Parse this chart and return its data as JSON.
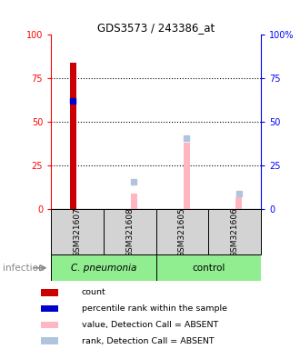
{
  "title": "GDS3573 / 243386_at",
  "samples": [
    "GSM321607",
    "GSM321608",
    "GSM321605",
    "GSM321606"
  ],
  "ylim": [
    0,
    100
  ],
  "left_yticks": [
    0,
    25,
    50,
    75,
    100
  ],
  "right_ytick_labels": [
    "0",
    "25",
    "50",
    "75",
    "100%"
  ],
  "count_values": [
    84,
    0,
    0,
    0
  ],
  "count_color": "#cc0000",
  "percentile_rank_values": [
    62,
    0,
    0,
    0
  ],
  "percentile_rank_color": "#0000cc",
  "value_absent_values": [
    0,
    9,
    38,
    7
  ],
  "value_absent_color": "#ffb6c1",
  "rank_absent_values": [
    0,
    16,
    41,
    9
  ],
  "rank_absent_color": "#b0c4de",
  "bar_width": 0.12,
  "legend_items": [
    {
      "color": "#cc0000",
      "label": "count"
    },
    {
      "color": "#0000cc",
      "label": "percentile rank within the sample"
    },
    {
      "color": "#ffb6c1",
      "label": "value, Detection Call = ABSENT"
    },
    {
      "color": "#b0c4de",
      "label": "rank, Detection Call = ABSENT"
    }
  ],
  "group_label": "infection",
  "group1_label": "C. pneumonia",
  "group2_label": "control",
  "sample_box_color": "#d3d3d3",
  "group_box_color": "#90ee90"
}
